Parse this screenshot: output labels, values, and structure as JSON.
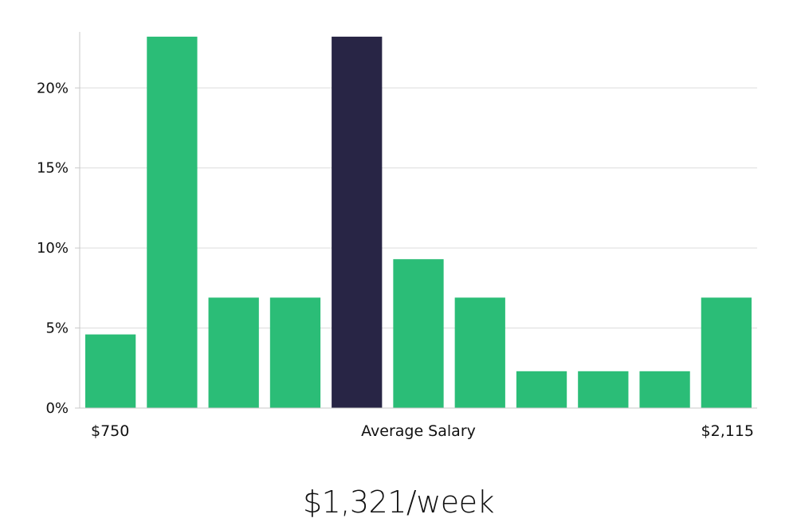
{
  "chart_data": {
    "type": "bar",
    "y_ticks": [
      "0%",
      "5%",
      "10%",
      "15%",
      "20%"
    ],
    "y_tick_values": [
      0,
      5,
      10,
      15,
      20
    ],
    "ylim": [
      0,
      23.5
    ],
    "grid": true,
    "values": [
      4.6,
      23.2,
      6.9,
      6.9,
      23.2,
      9.3,
      6.9,
      2.3,
      2.3,
      2.3,
      6.9
    ],
    "highlight_index": 4,
    "x_label_left": "$750",
    "x_label_center": "Average Salary",
    "x_label_right": "$2,115",
    "colors": {
      "bar": "#2bbd77",
      "highlight": "#282545",
      "grid": "#dcdcdc",
      "axis": "#c8c8c8"
    }
  },
  "summary": "$1,321/week"
}
